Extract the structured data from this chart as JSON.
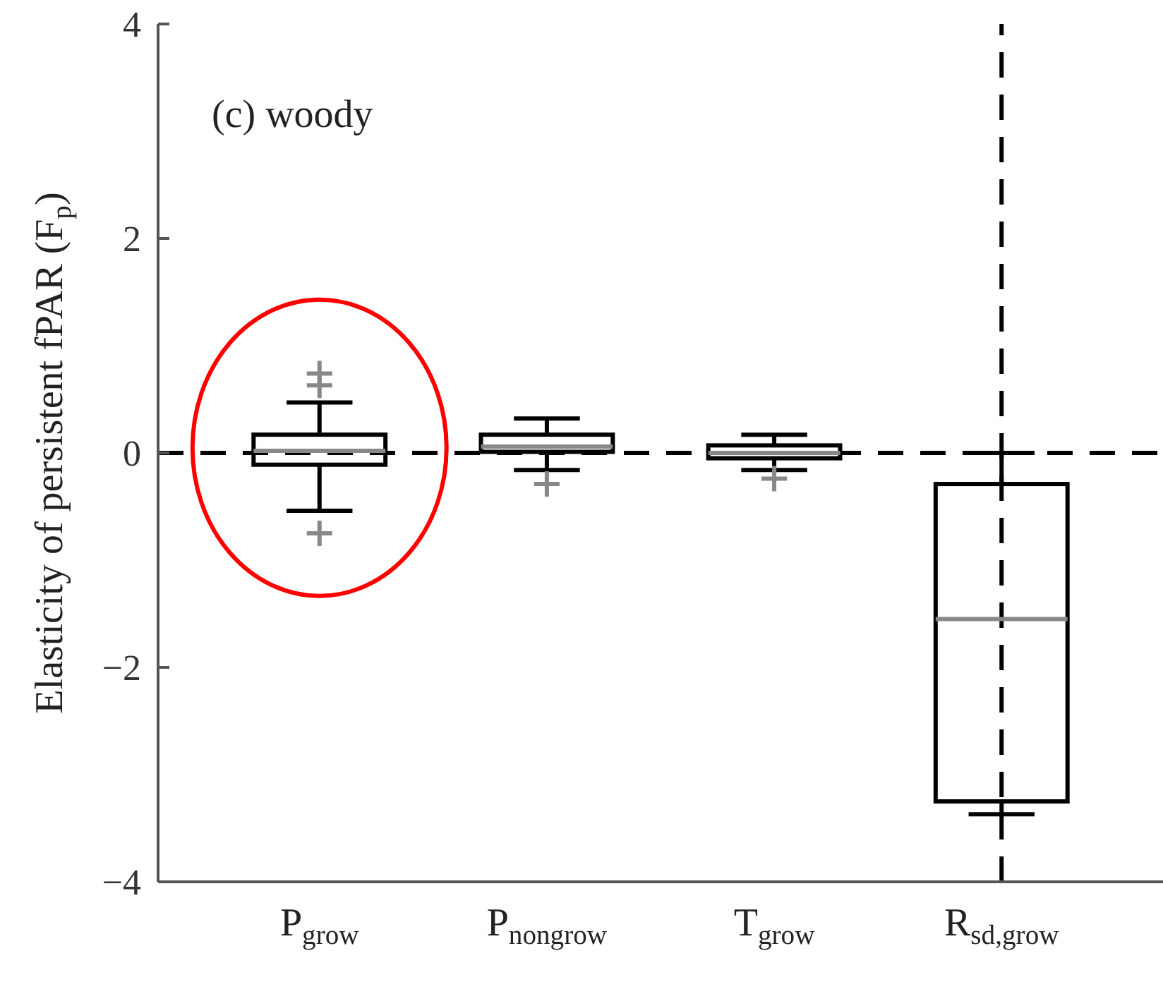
{
  "chart_data": {
    "type": "box",
    "title": "(c) woody",
    "ylabel": "Elasticity of persistent fPAR (F$_{p}$)",
    "categories": [
      "P$_{grow}$",
      "P$_{nongrow}$",
      "T$_{grow}$",
      "R$_{sd,grow}$"
    ],
    "color": "#000000",
    "boxes": [
      {
        "low": -0.54,
        "q1": -0.11,
        "median": 0.02,
        "q3": 0.17,
        "high": 0.47,
        "outliers": [
          -0.75,
          0.63,
          0.74
        ]
      },
      {
        "low": -0.16,
        "q1": 0.01,
        "median": 0.06,
        "q3": 0.17,
        "high": 0.32,
        "outliers": [
          -0.29
        ]
      },
      {
        "low": -0.16,
        "q1": -0.05,
        "median": 0.0,
        "q3": 0.07,
        "high": 0.17,
        "outliers": [
          -0.24
        ]
      },
      {
        "low": -3.37,
        "q1": -3.25,
        "median": -1.55,
        "q3": -0.29,
        "high": 0.0
      }
    ],
    "ylim": [
      -4,
      4
    ],
    "yticks": [
      -4,
      -2,
      0,
      2,
      4
    ],
    "grid": false,
    "ref_lines": [
      {
        "axis": "y",
        "value": 0,
        "color": "#000000",
        "line_style": "dashed"
      },
      {
        "axis": "x",
        "value": "R$_{sd,grow}$",
        "color": "#000000",
        "line_style": "dashed"
      }
    ]
  }
}
